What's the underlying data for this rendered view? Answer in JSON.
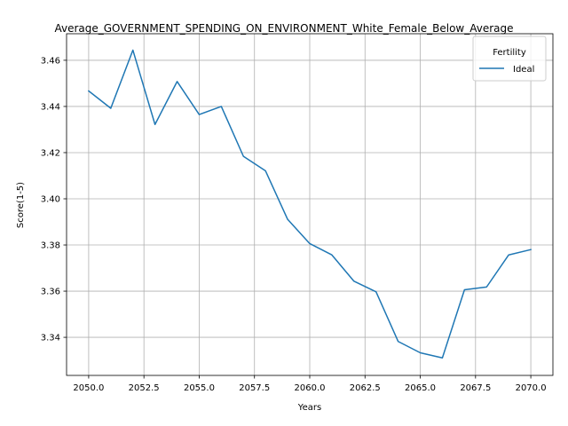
{
  "chart_data": {
    "type": "line",
    "title": "Average_GOVERNMENT_SPENDING_ON_ENVIRONMENT_White_Female_Below_Average",
    "xlabel": "Years",
    "ylabel": "Score(1-5)",
    "xlim": [
      2049.0,
      2071.0
    ],
    "ylim": [
      3.3235,
      3.4715
    ],
    "x_ticks": [
      2050.0,
      2052.5,
      2055.0,
      2057.5,
      2060.0,
      2062.5,
      2065.0,
      2067.5,
      2070.0
    ],
    "x_tick_labels": [
      "2050.0",
      "2052.5",
      "2055.0",
      "2057.5",
      "2060.0",
      "2062.5",
      "2065.0",
      "2067.5",
      "2070.0"
    ],
    "y_ticks": [
      3.34,
      3.36,
      3.38,
      3.4,
      3.42,
      3.44,
      3.46
    ],
    "y_tick_labels": [
      "3.34",
      "3.36",
      "3.38",
      "3.40",
      "3.42",
      "3.44",
      "3.46"
    ],
    "grid": true,
    "legend": {
      "title": "Fertility",
      "placement": "top-right"
    },
    "x": [
      2050,
      2051,
      2052,
      2053,
      2054,
      2055,
      2056,
      2057,
      2058,
      2059,
      2060,
      2061,
      2062,
      2063,
      2064,
      2065,
      2066,
      2067,
      2068,
      2069,
      2070
    ],
    "series": [
      {
        "name": "Ideal",
        "color": "#1f77b4",
        "values": [
          3.4467,
          3.4392,
          3.4644,
          3.4322,
          3.4508,
          3.4365,
          3.44,
          3.4184,
          3.4121,
          3.3911,
          3.3806,
          3.3757,
          3.3643,
          3.3597,
          3.3382,
          3.3333,
          3.3311,
          3.3606,
          3.3618,
          3.3757,
          3.378
        ]
      }
    ]
  }
}
